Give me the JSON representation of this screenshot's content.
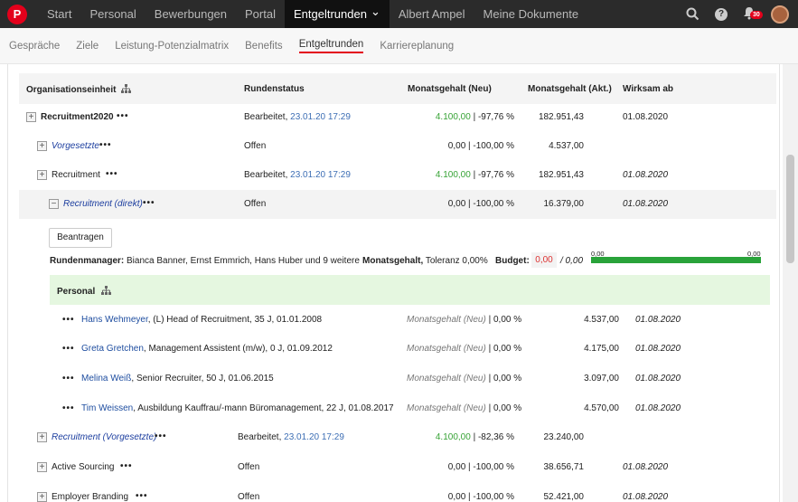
{
  "nav": {
    "logo": "P",
    "items": [
      "Start",
      "Personal",
      "Bewerbungen",
      "Portal",
      "Entgeltrunden",
      "Albert Ampel",
      "Meine Dokumente"
    ],
    "active_chevron": "⌄",
    "notif_count": "30"
  },
  "subnav": {
    "items": [
      "Gespräche",
      "Ziele",
      "Leistung-Potenzialmatrix",
      "Benefits",
      "Entgeltrunden",
      "Karriereplanung"
    ]
  },
  "table": {
    "headers": {
      "org": "Organisationseinheit",
      "status": "Rundenstatus",
      "ms_new": "Monatsgehalt (Neu)",
      "ms_act": "Monatsgehalt (Akt.)",
      "eff": "Wirksam ab"
    },
    "rows": [
      {
        "name": "Recruitment2020",
        "status": "Bearbeitet,",
        "date": "23.01.20 17:29",
        "ms_green": "4.100,00",
        "ms_rest": " | -97,76 %",
        "ms_act": "182.951,43",
        "eff": "01.08.2020"
      },
      {
        "name": "Vorgesetzte",
        "status": "Offen",
        "ms_rest": "0,00 | -100,00 %",
        "ms_act": "4.537,00",
        "eff": ""
      },
      {
        "name": "Recruitment",
        "status": "Bearbeitet,",
        "date": "23.01.20 17:29",
        "ms_green": "4.100,00",
        "ms_rest": " | -97,76 %",
        "ms_act": "182.951,43",
        "eff": "01.08.2020"
      },
      {
        "name": "Recruitment (direkt)",
        "status": "Offen",
        "ms_rest": "0,00 | -100,00 %",
        "ms_act": "16.379,00",
        "eff": "01.08.2020"
      },
      {
        "name": "Recruitment (Vorgesetzte)",
        "status": "Bearbeitet,",
        "date": "23.01.20 17:29",
        "ms_green": "4.100,00",
        "ms_rest": " | -82,36 %",
        "ms_act": "23.240,00",
        "eff": ""
      },
      {
        "name": "Active Sourcing",
        "status": "Offen",
        "ms_rest": "0,00 | -100,00 %",
        "ms_act": "38.656,71",
        "eff": "01.08.2020"
      },
      {
        "name": "Employer Branding",
        "status": "Offen",
        "ms_rest": "0,00 | -100,00 %",
        "ms_act": "52.421,00",
        "eff": "01.08.2020"
      }
    ]
  },
  "detail": {
    "button": "Beantragen",
    "managers_label": "Rundenmanager:",
    "managers": " Bianca Banner, Ernst Emmrich, Hans Huber und 9 weitere",
    "ms_label": "Monatsgehalt,",
    "tolerance": " Toleranz 0,00%",
    "budget_label": "Budget:",
    "budget_val": "0,00",
    "budget_total": "/ 0,00",
    "bar_left": "0,00",
    "bar_right": "0,00",
    "section": "Personal",
    "people": [
      {
        "name": "Hans Wehmeyer",
        "desc": ", (L) Head of Recruitment, 35 J, 01.01.2008",
        "lbl": "Monatsgehalt (Neu)",
        "pct": " | 0,00 %",
        "val": "4.537,00",
        "eff": "01.08.2020"
      },
      {
        "name": "Greta Gretchen",
        "desc": ", Management Assistent (m/w), 0 J, 01.09.2012",
        "lbl": "Monatsgehalt (Neu)",
        "pct": " | 0,00 %",
        "val": "4.175,00",
        "eff": "01.08.2020"
      },
      {
        "name": "Melina Weiß",
        "desc": ", Senior Recruiter, 50 J, 01.06.2015",
        "lbl": "Monatsgehalt (Neu)",
        "pct": " | 0,00 %",
        "val": "3.097,00",
        "eff": "01.08.2020"
      },
      {
        "name": "Tim Weissen",
        "desc": ", Ausbildung Kauffrau/-mann Büromanagement, 22 J, 01.08.2017",
        "lbl": "Monatsgehalt (Neu)",
        "pct": " | 0,00 %",
        "val": "4.570,00",
        "eff": "01.08.2020"
      }
    ]
  },
  "colors": {
    "accent": "#e3001b",
    "green": "#37a336",
    "link": "#1f4ea0"
  }
}
